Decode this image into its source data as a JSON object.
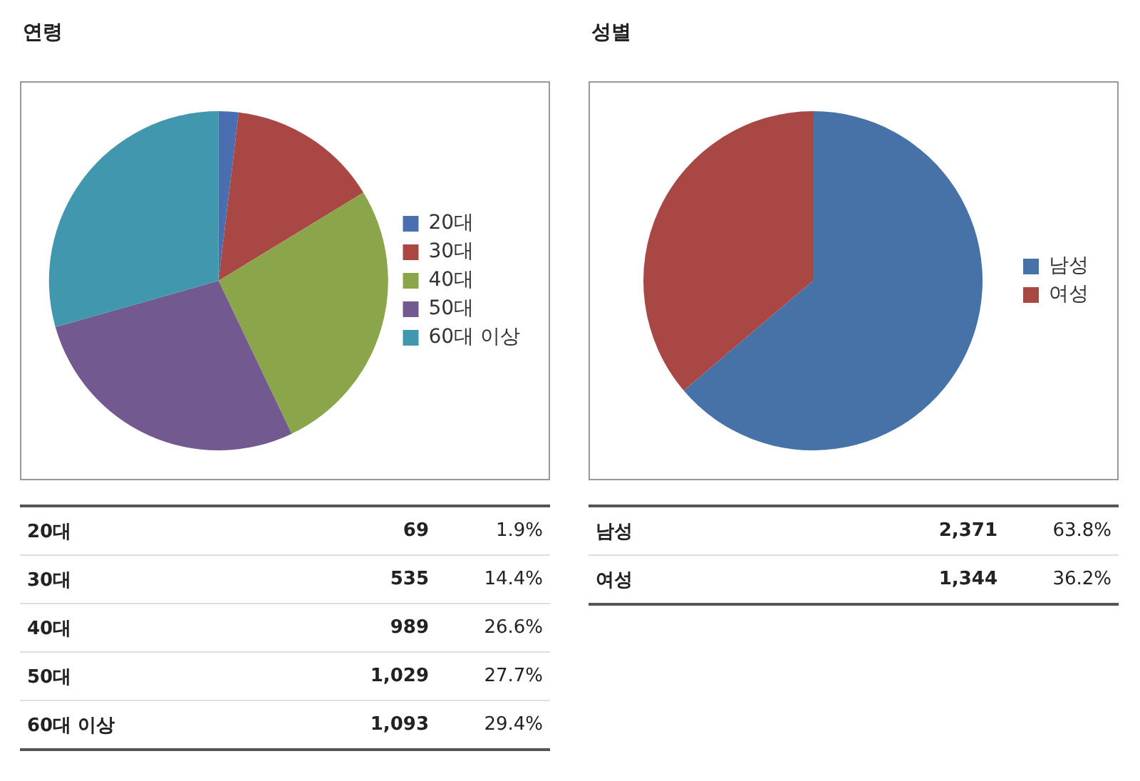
{
  "chart_data": [
    {
      "type": "pie",
      "title": "연령",
      "categories": [
        "20대",
        "30대",
        "40대",
        "50대",
        "60대 이상"
      ],
      "values": [
        1.9,
        14.4,
        26.6,
        27.7,
        29.4
      ],
      "colors": [
        "#4a6fb0",
        "#a84744",
        "#8ba64a",
        "#72598f",
        "#4097ae"
      ],
      "annotations": [
        "69",
        "1.9%",
        "535",
        "14.4%",
        "989",
        "26.6%",
        "1,029",
        "27.7%",
        "1,093",
        "29.4%"
      ],
      "legend": "right"
    },
    {
      "type": "pie",
      "title": "성별",
      "categories": [
        "남성",
        "여성"
      ],
      "values": [
        63.8,
        36.2
      ],
      "colors": [
        "#4672a8",
        "#a84744"
      ],
      "annotations": [
        "2,371",
        "63.8%",
        "1,344",
        "36.2%"
      ],
      "legend": "right"
    }
  ]
}
